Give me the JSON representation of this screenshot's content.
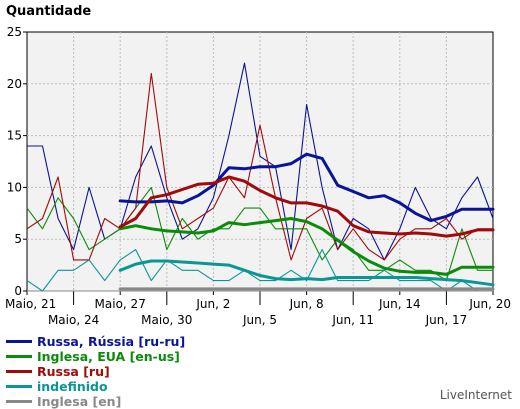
{
  "chart_data": {
    "type": "line",
    "title": "Quantidade",
    "ylim": [
      0,
      25
    ],
    "yticks": [
      0,
      5,
      10,
      15,
      20,
      25
    ],
    "grid": true,
    "x_count": 31,
    "xticks": [
      {
        "i": 0,
        "label": "Maio, 21",
        "row": 0
      },
      {
        "i": 3,
        "label": "Maio, 24",
        "row": 1
      },
      {
        "i": 6,
        "label": "Maio, 27",
        "row": 0
      },
      {
        "i": 9,
        "label": "Maio, 30",
        "row": 1
      },
      {
        "i": 12,
        "label": "Jun, 2",
        "row": 0
      },
      {
        "i": 15,
        "label": "Jun, 5",
        "row": 1
      },
      {
        "i": 18,
        "label": "Jun, 8",
        "row": 0
      },
      {
        "i": 21,
        "label": "Jun, 11",
        "row": 1
      },
      {
        "i": 24,
        "label": "Jun, 14",
        "row": 0
      },
      {
        "i": 27,
        "label": "Jun, 17",
        "row": 1
      },
      {
        "i": 30,
        "label": "Jun, 20",
        "row": 0
      }
    ],
    "series": [
      {
        "name": "Russa, Rússia [ru-ru]",
        "color": "#0a1496",
        "daily": [
          14,
          14,
          7,
          4,
          10,
          5,
          6,
          11,
          14,
          9,
          5,
          6,
          9,
          15,
          22,
          13,
          12,
          4,
          18,
          10,
          4,
          7,
          6,
          3,
          6,
          10,
          7,
          6,
          9,
          11,
          7
        ],
        "avg_start": 6,
        "avg": [
          8.7,
          8.6,
          8.6,
          8.7,
          8.5,
          9.2,
          10.2,
          11.9,
          11.8,
          12.0,
          12.0,
          12.3,
          13.2,
          12.8,
          10.2,
          9.6,
          9.0,
          9.2,
          8.5,
          7.5,
          6.8,
          7.2,
          7.9,
          7.9,
          7.9
        ]
      },
      {
        "name": "Inglesa, EUA [en-us]",
        "color": "#0a8c0a",
        "daily": [
          8,
          6,
          9,
          7,
          4,
          5,
          6,
          8,
          10,
          4,
          7,
          5,
          6,
          6,
          8,
          8,
          6,
          6,
          6,
          3,
          5,
          4,
          2,
          2,
          3,
          2,
          2,
          1,
          6,
          2,
          2
        ],
        "avg_start": 6,
        "avg": [
          6.0,
          6.3,
          6.0,
          5.8,
          5.7,
          5.6,
          5.8,
          6.6,
          6.4,
          6.6,
          6.8,
          7.0,
          6.7,
          6.0,
          4.9,
          3.8,
          2.9,
          2.2,
          1.9,
          1.8,
          1.8,
          1.6,
          2.3,
          2.3,
          2.3
        ]
      },
      {
        "name": "Russa [ru]",
        "color": "#a00a0a",
        "daily": [
          6,
          7,
          11,
          3,
          3,
          7,
          6,
          8,
          21,
          10,
          6,
          7,
          8,
          11,
          9,
          16,
          9,
          3,
          7,
          8,
          4,
          6,
          4,
          3,
          5,
          6,
          6,
          7,
          5,
          6,
          6
        ],
        "avg_start": 6,
        "avg": [
          6.2,
          7.0,
          9.0,
          9.3,
          9.8,
          10.3,
          10.4,
          11.0,
          10.6,
          9.7,
          9.0,
          8.5,
          8.5,
          8.2,
          7.7,
          6.3,
          5.7,
          5.6,
          5.5,
          5.6,
          5.5,
          5.3,
          5.5,
          5.9,
          5.9
        ]
      },
      {
        "name": "indefinido",
        "color": "#0a9696",
        "daily": [
          1,
          0,
          2,
          2,
          3,
          1,
          3,
          4,
          1,
          3,
          2,
          2,
          1,
          1,
          2,
          1,
          1,
          2,
          1,
          4,
          1,
          1,
          1,
          2,
          1,
          1,
          1,
          0,
          1,
          0,
          0
        ],
        "avg_start": 6,
        "avg": [
          2.0,
          2.6,
          2.9,
          2.9,
          2.8,
          2.7,
          2.6,
          2.5,
          2.0,
          1.5,
          1.2,
          1.1,
          1.2,
          1.1,
          1.3,
          1.3,
          1.3,
          1.3,
          1.3,
          1.3,
          1.2,
          1.1,
          1.0,
          0.8,
          0.6
        ]
      },
      {
        "name": "Inglesa [en]",
        "color": "#888888",
        "daily": [
          0,
          0,
          0,
          0,
          0,
          0,
          0,
          0,
          0,
          0,
          0,
          0,
          0,
          0,
          0,
          0,
          0,
          0,
          0,
          0,
          0,
          0,
          0,
          0,
          0,
          0,
          0,
          0,
          0,
          0,
          0
        ],
        "avg_start": 6,
        "avg": [
          0.2,
          0.2,
          0.2,
          0.2,
          0.2,
          0.2,
          0.2,
          0.2,
          0.2,
          0.2,
          0.2,
          0.2,
          0.2,
          0.2,
          0.2,
          0.2,
          0.2,
          0.2,
          0.2,
          0.2,
          0.2,
          0.2,
          0.2,
          0.2,
          0.2
        ]
      }
    ]
  },
  "footer": {
    "brand": "LiveInternet"
  }
}
